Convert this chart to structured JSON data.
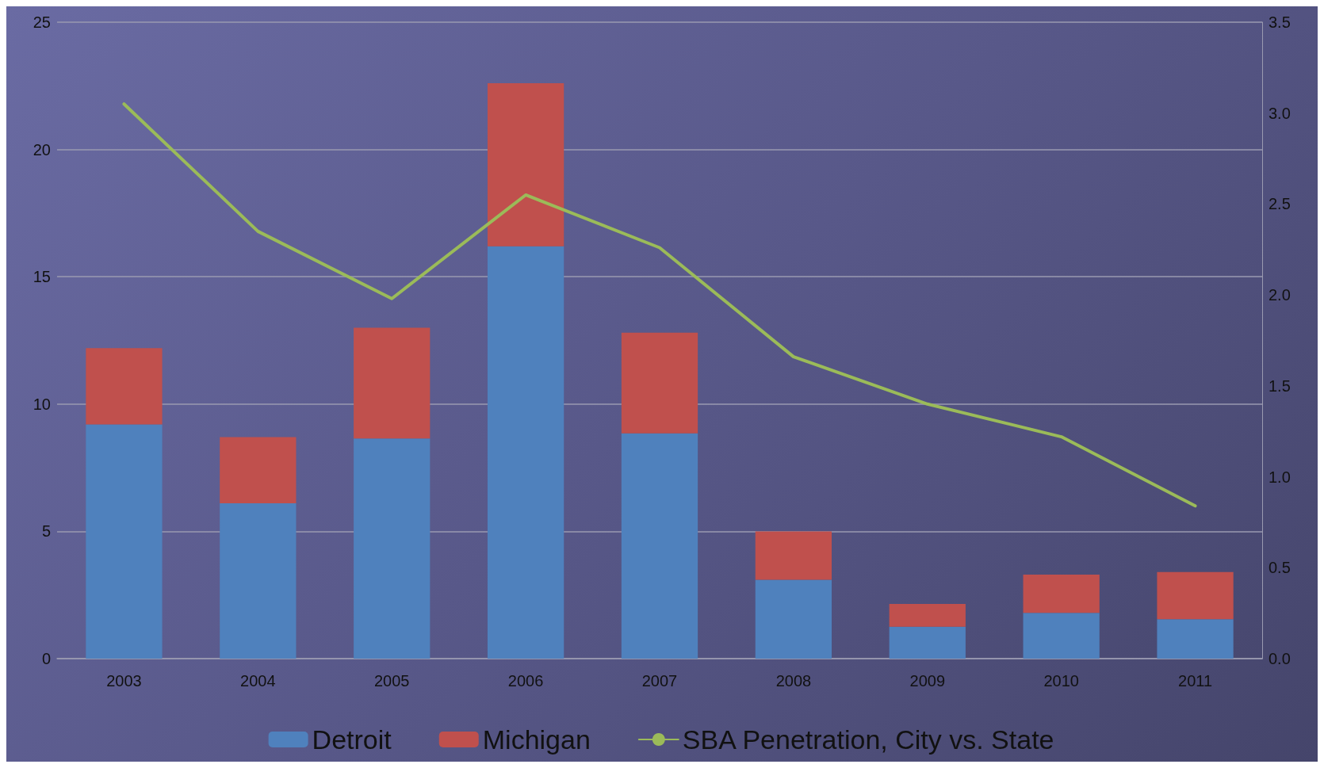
{
  "chart_data": {
    "type": "bar",
    "stacked": true,
    "categories": [
      "2003",
      "2004",
      "2005",
      "2006",
      "2007",
      "2008",
      "2009",
      "2010",
      "2011"
    ],
    "series": [
      {
        "name": "Detroit",
        "color": "#4f81bd",
        "values": [
          9.2,
          6.1,
          8.65,
          16.2,
          8.85,
          3.1,
          1.25,
          1.8,
          1.55
        ]
      },
      {
        "name": "Michigan",
        "color": "#c0504d",
        "values": [
          3.0,
          2.6,
          4.35,
          6.4,
          3.95,
          1.9,
          0.9,
          1.5,
          1.85
        ]
      },
      {
        "name": "SBA Penetration, City vs. State",
        "type": "line",
        "axis": "y2",
        "color": "#9bbb59",
        "values": [
          3.05,
          2.35,
          1.98,
          2.55,
          2.26,
          1.66,
          1.4,
          1.22,
          0.84
        ]
      }
    ],
    "ylim": [
      0,
      25
    ],
    "yticks": [
      0,
      5,
      10,
      15,
      20,
      25
    ],
    "y2lim": [
      0,
      3.5
    ],
    "y2ticks": [
      {
        "value": 0,
        "label": "0.0"
      },
      {
        "value": 0.5,
        "label": "0.5"
      },
      {
        "value": 1,
        "label": "1.0"
      },
      {
        "value": 1.5,
        "label": "1.5"
      },
      {
        "value": 2,
        "label": "2.0"
      },
      {
        "value": 2.5,
        "label": "2.5"
      },
      {
        "value": 3,
        "label": "3.0"
      },
      {
        "value": 3.5,
        "label": "3.5"
      }
    ],
    "grid": "y",
    "legend": "bottom",
    "marker": "none"
  }
}
